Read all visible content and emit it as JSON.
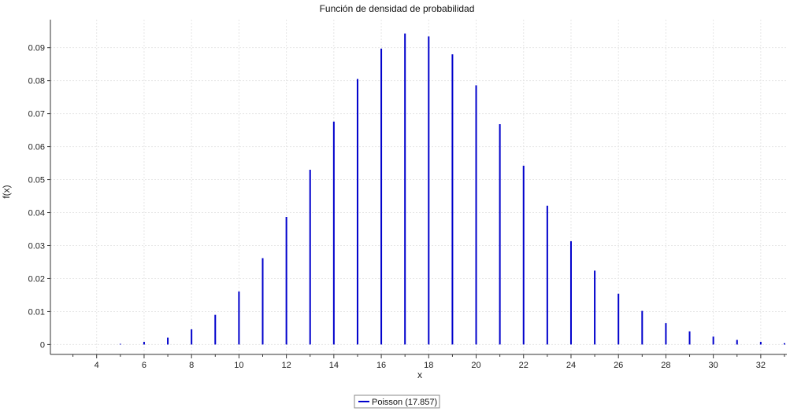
{
  "chart_data": {
    "type": "bar",
    "title": "Función de densidad de probabilidad",
    "xlabel": "x",
    "ylabel": "f(x)",
    "xlim": [
      2.05,
      33.1
    ],
    "ylim": [
      -0.003,
      0.0985
    ],
    "x_ticks": [
      4,
      6,
      8,
      10,
      12,
      14,
      16,
      18,
      20,
      22,
      24,
      26,
      28,
      30,
      32
    ],
    "y_ticks": [
      0,
      0.01,
      0.02,
      0.03,
      0.04,
      0.05,
      0.06,
      0.07,
      0.08,
      0.09
    ],
    "y_tick_labels": [
      "0",
      "0.01",
      "0.02",
      "0.03",
      "0.04",
      "0.05",
      "0.06",
      "0.07",
      "0.08",
      "0.09"
    ],
    "grid": true,
    "legend_position": "bottom-center",
    "series": [
      {
        "name": "Poisson (17.857)",
        "color": "#0000cc",
        "x": [
          5,
          6,
          7,
          8,
          9,
          10,
          11,
          12,
          13,
          14,
          15,
          16,
          17,
          18,
          19,
          20,
          21,
          22,
          23,
          24,
          25,
          26,
          27,
          28,
          29,
          30,
          31,
          32,
          33
        ],
        "values": [
          0.0002,
          0.0008,
          0.0021,
          0.0046,
          0.009,
          0.0161,
          0.0262,
          0.0387,
          0.053,
          0.0676,
          0.0805,
          0.0897,
          0.0943,
          0.0934,
          0.088,
          0.0786,
          0.0668,
          0.0542,
          0.0421,
          0.0313,
          0.0224,
          0.0154,
          0.0102,
          0.0065,
          0.004,
          0.0024,
          0.0014,
          0.0008,
          0.0004
        ]
      }
    ]
  }
}
